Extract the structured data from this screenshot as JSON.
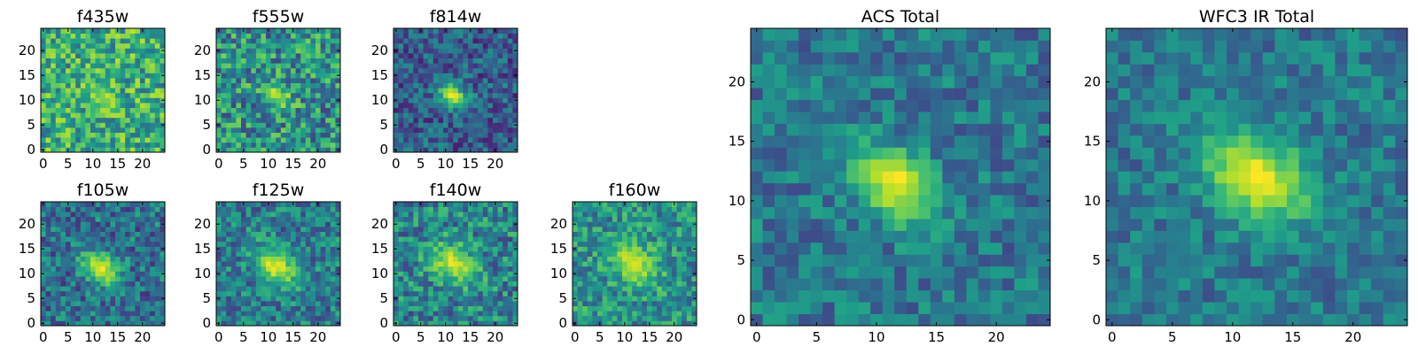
{
  "figure": {
    "description_type": "multi-panel image grid",
    "colormap": "viridis"
  },
  "chart_data": [
    {
      "type": "heatmap",
      "title": "f435w",
      "xlim": [
        0,
        24
      ],
      "ylim": [
        0,
        24
      ],
      "xticks": [
        0,
        5,
        10,
        15,
        20
      ],
      "yticks": [
        0,
        5,
        10,
        15,
        20
      ],
      "grid": false,
      "center": [
        12,
        11
      ],
      "source_size": 2.2,
      "peak": 0.85,
      "background": 0.62,
      "noise": 0.28
    },
    {
      "type": "heatmap",
      "title": "f555w",
      "xlim": [
        0,
        24
      ],
      "ylim": [
        0,
        24
      ],
      "xticks": [
        0,
        5,
        10,
        15,
        20
      ],
      "yticks": [
        0,
        5,
        10,
        15,
        20
      ],
      "grid": false,
      "center": [
        11.5,
        11
      ],
      "source_size": 2.0,
      "peak": 0.9,
      "background": 0.5,
      "noise": 0.3
    },
    {
      "type": "heatmap",
      "title": "f814w",
      "xlim": [
        0,
        24
      ],
      "ylim": [
        0,
        24
      ],
      "xticks": [
        0,
        5,
        10,
        15,
        20
      ],
      "yticks": [
        0,
        5,
        10,
        15,
        20
      ],
      "grid": false,
      "center": [
        11.5,
        11
      ],
      "source_size": 2.0,
      "peak": 0.95,
      "background": 0.3,
      "noise": 0.22
    },
    {
      "type": "heatmap",
      "title": "f105w",
      "xlim": [
        0,
        24
      ],
      "ylim": [
        0,
        24
      ],
      "xticks": [
        0,
        5,
        10,
        15,
        20
      ],
      "yticks": [
        0,
        5,
        10,
        15,
        20
      ],
      "grid": false,
      "center": [
        11.5,
        11
      ],
      "source_size": 2.6,
      "peak": 0.95,
      "background": 0.38,
      "noise": 0.24
    },
    {
      "type": "heatmap",
      "title": "f125w",
      "xlim": [
        0,
        24
      ],
      "ylim": [
        0,
        24
      ],
      "xticks": [
        0,
        5,
        10,
        15,
        20
      ],
      "yticks": [
        0,
        5,
        10,
        15,
        20
      ],
      "grid": false,
      "center": [
        11.5,
        11.5
      ],
      "source_size": 3.0,
      "peak": 0.95,
      "background": 0.42,
      "noise": 0.24
    },
    {
      "type": "heatmap",
      "title": "f140w",
      "xlim": [
        0,
        24
      ],
      "ylim": [
        0,
        24
      ],
      "xticks": [
        0,
        5,
        10,
        15,
        20
      ],
      "yticks": [
        0,
        5,
        10,
        15,
        20
      ],
      "grid": false,
      "center": [
        11.5,
        12
      ],
      "source_size": 3.2,
      "peak": 0.92,
      "background": 0.45,
      "noise": 0.26
    },
    {
      "type": "heatmap",
      "title": "f160w",
      "xlim": [
        0,
        24
      ],
      "ylim": [
        0,
        24
      ],
      "xticks": [
        0,
        5,
        10,
        15,
        20
      ],
      "yticks": [
        0,
        5,
        10,
        15,
        20
      ],
      "grid": false,
      "center": [
        12,
        12
      ],
      "source_size": 3.4,
      "peak": 0.9,
      "background": 0.5,
      "noise": 0.24
    },
    {
      "type": "heatmap",
      "title": "ACS Total",
      "xlim": [
        0,
        24
      ],
      "ylim": [
        0,
        24
      ],
      "xticks": [
        0,
        5,
        10,
        15,
        20
      ],
      "yticks": [
        0,
        5,
        10,
        15,
        20
      ],
      "grid": false,
      "center": [
        11.5,
        11.5
      ],
      "source_size": 2.4,
      "peak": 1.0,
      "background": 0.4,
      "noise": 0.18
    },
    {
      "type": "heatmap",
      "title": "WFC3 IR Total",
      "xlim": [
        0,
        24
      ],
      "ylim": [
        0,
        24
      ],
      "xticks": [
        0,
        5,
        10,
        15,
        20
      ],
      "yticks": [
        0,
        5,
        10,
        15,
        20
      ],
      "grid": false,
      "center": [
        12,
        12
      ],
      "source_size": 3.0,
      "peak": 1.0,
      "background": 0.4,
      "noise": 0.16
    }
  ]
}
